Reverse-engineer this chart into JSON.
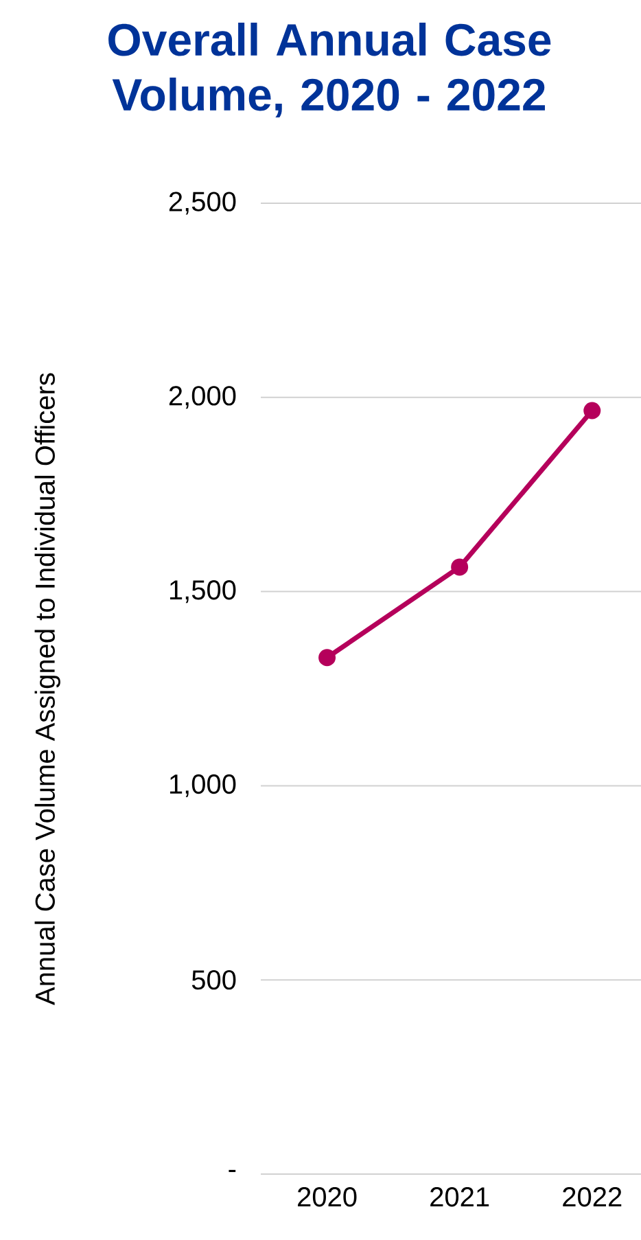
{
  "chart_data": {
    "type": "line",
    "title": "Overall Annual Case Volume, 2020 - 2022",
    "ylabel": "Annual Case Volume Assigned to Individual Officers",
    "categories": [
      "2020",
      "2021",
      "2022"
    ],
    "series": [
      {
        "color": "#b5005b",
        "values": [
          1330,
          1563,
          1966
        ]
      }
    ],
    "ylim": [
      0,
      2500
    ],
    "yticks": [
      {
        "value": 0,
        "label": "-"
      },
      {
        "value": 500,
        "label": "500"
      },
      {
        "value": 1000,
        "label": "1,000"
      },
      {
        "value": 1500,
        "label": "1,500"
      },
      {
        "value": 2000,
        "label": "2,000"
      },
      {
        "value": 2500,
        "label": "2,500"
      }
    ],
    "grid": "y",
    "marker": "circle"
  }
}
